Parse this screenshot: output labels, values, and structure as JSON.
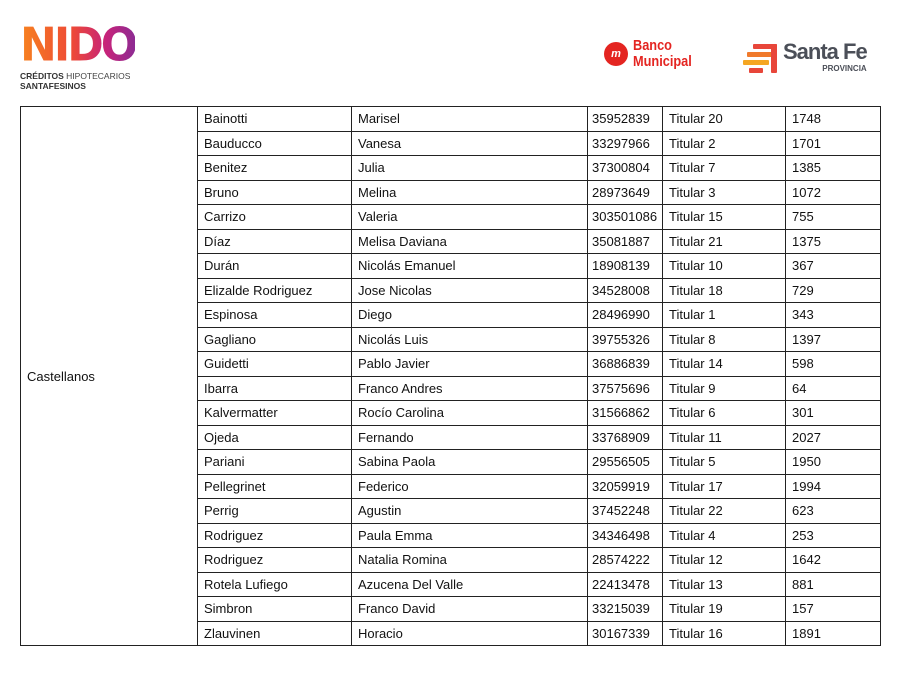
{
  "header": {
    "nido_logo": {
      "word": "NIDO",
      "line1_bold": "CRÉDITOS",
      "line1_rest": "HIPOTECARIOS",
      "line2": "SANTAFESINOS",
      "gradient": [
        "#f7831f",
        "#ee4a36",
        "#c6237a",
        "#8d2b93"
      ]
    },
    "banco_logo": {
      "line1": "Banco",
      "line2": "Municipal",
      "color": "#e42521"
    },
    "santafe_logo": {
      "name": "Santa Fe",
      "sub": "PROVINCIA",
      "color": "#4b4f58"
    }
  },
  "table": {
    "department": "Castellanos",
    "rows": [
      [
        "Bainotti",
        "Marisel",
        "35952839",
        "Titular 20",
        "1748"
      ],
      [
        "Bauducco",
        "Vanesa",
        "33297966",
        "Titular 2",
        "1701"
      ],
      [
        "Benitez",
        "Julia",
        "37300804",
        "Titular 7",
        "1385"
      ],
      [
        "Bruno",
        "Melina",
        "28973649",
        "Titular 3",
        "1072"
      ],
      [
        "Carrizo",
        "Valeria",
        "303501086",
        "Titular 15",
        "755"
      ],
      [
        "Díaz",
        "Melisa Daviana",
        "35081887",
        "Titular 21",
        "1375"
      ],
      [
        "Durán",
        "Nicolás Emanuel",
        "18908139",
        "Titular 10",
        "367"
      ],
      [
        "Elizalde Rodriguez",
        "Jose Nicolas",
        "34528008",
        "Titular 18",
        "729"
      ],
      [
        "Espinosa",
        "Diego",
        "28496990",
        "Titular 1",
        "343"
      ],
      [
        "Gagliano",
        "Nicolás Luis",
        "39755326",
        "Titular 8",
        "1397"
      ],
      [
        "Guidetti",
        "Pablo Javier",
        "36886839",
        "Titular 14",
        "598"
      ],
      [
        "Ibarra",
        "Franco Andres",
        "37575696",
        "Titular 9",
        "64"
      ],
      [
        "Kalvermatter",
        "Rocío Carolina",
        "31566862",
        "Titular 6",
        "301"
      ],
      [
        "Ojeda",
        "Fernando",
        "33768909",
        "Titular 11",
        "2027"
      ],
      [
        "Pariani",
        "Sabina Paola",
        "29556505",
        "Titular 5",
        "1950"
      ],
      [
        "Pellegrinet",
        "Federico",
        "32059919",
        "Titular 17",
        "1994"
      ],
      [
        "Perrig",
        "Agustin",
        "37452248",
        "Titular 22",
        "623"
      ],
      [
        "Rodriguez",
        "Paula Emma",
        "34346498",
        "Titular 4",
        "253"
      ],
      [
        "Rodriguez",
        "Natalia Romina",
        "28574222",
        "Titular 12",
        "1642"
      ],
      [
        "Rotela Lufiego",
        "Azucena Del Valle",
        "22413478",
        "Titular 13",
        "881"
      ],
      [
        "Simbron",
        "Franco David",
        "33215039",
        "Titular 19",
        "157"
      ],
      [
        "Zlauvinen",
        "Horacio",
        "30167339",
        "Titular 16",
        "1891"
      ]
    ]
  }
}
